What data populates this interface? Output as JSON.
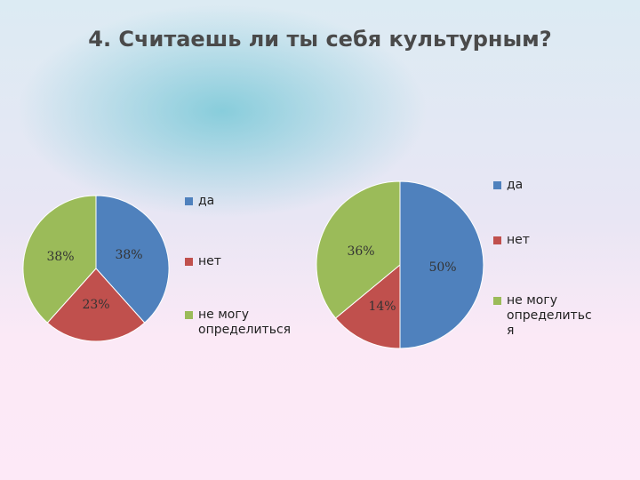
{
  "title": "4. Считаешь ли ты себя культурным?",
  "colors": {
    "da": "#4f81bd",
    "net": "#c0504d",
    "ne_mogu": "#9bbb59"
  },
  "chart_data": [
    {
      "type": "pie",
      "categories": [
        "да",
        "нет",
        "не могу определиться"
      ],
      "values": [
        38,
        23,
        38
      ],
      "data_labels": [
        "38%",
        "23%",
        "38%"
      ],
      "legend": [
        "да",
        "нет",
        "не могу\nопределиться"
      ],
      "legend_position": "right"
    },
    {
      "type": "pie",
      "categories": [
        "да",
        "нет",
        "не могу определиться"
      ],
      "values": [
        50,
        14,
        36
      ],
      "data_labels": [
        "50%",
        "14%",
        "36%"
      ],
      "legend": [
        "да",
        "нет",
        "не могу\nопределитьс\nя"
      ],
      "legend_position": "right"
    }
  ]
}
